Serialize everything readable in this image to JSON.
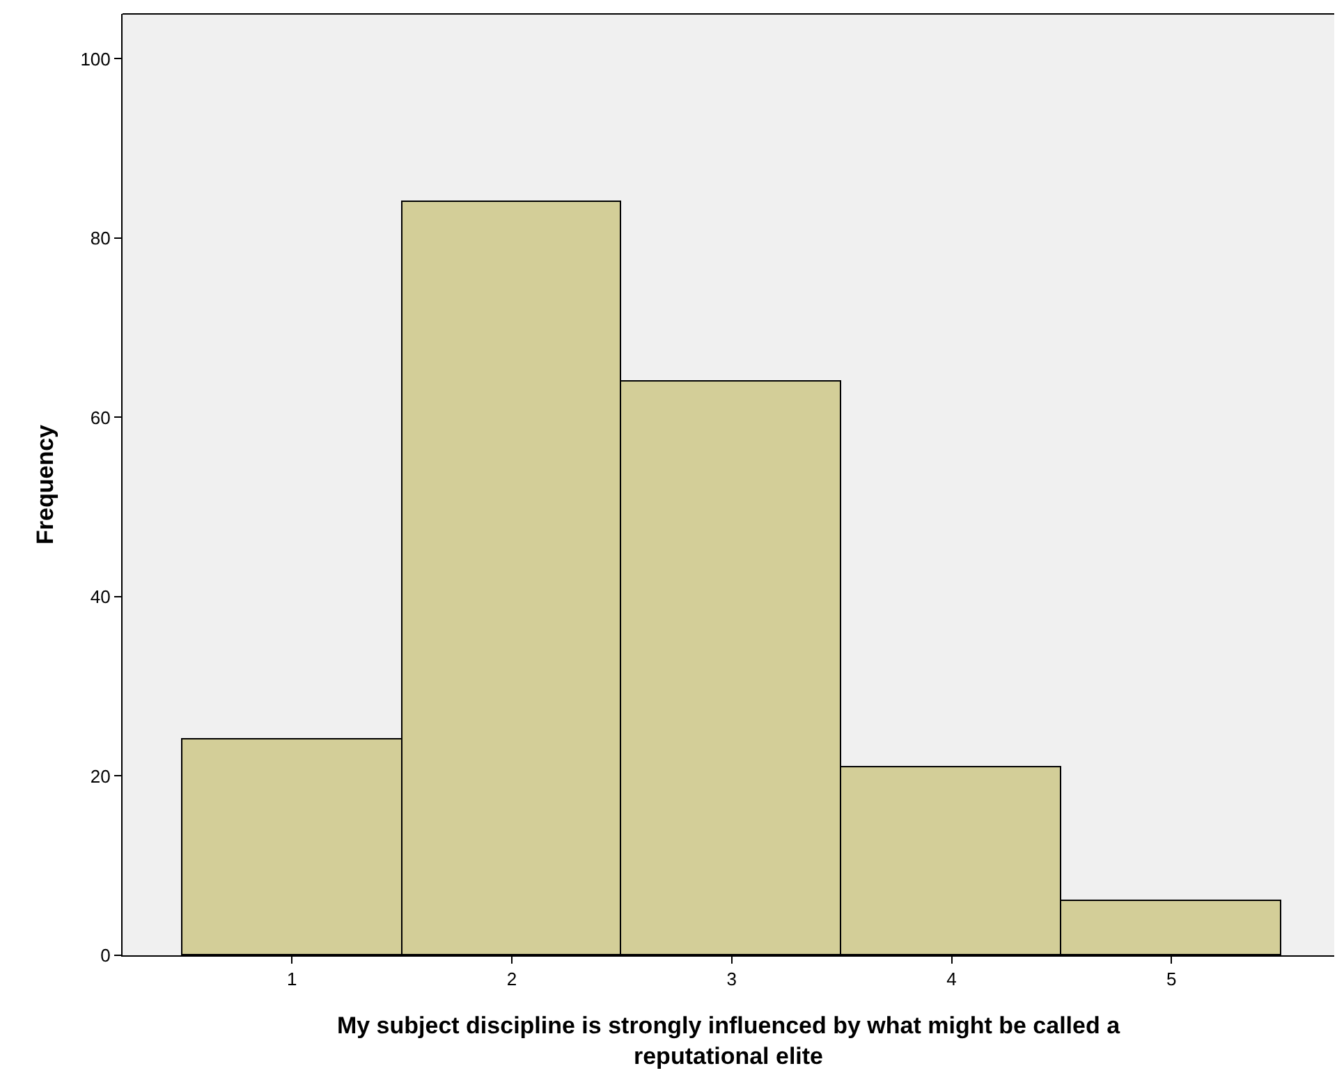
{
  "chart_data": {
    "type": "histogram",
    "xlabel": "My subject discipline is strongly influenced by what might be called a reputational elite",
    "ylabel": "Frequency",
    "bins": [
      0.5,
      1.5,
      2.5,
      3.5,
      4.5,
      5.5
    ],
    "values": [
      24,
      84,
      64,
      21,
      6
    ],
    "color": "#d3ce98",
    "xlim": [
      0.23,
      5.74
    ],
    "xticks": [
      1,
      2,
      3,
      4,
      5
    ],
    "ylim": [
      0,
      105
    ],
    "yticks": [
      0,
      20,
      40,
      60,
      80,
      100
    ],
    "grid": false
  }
}
